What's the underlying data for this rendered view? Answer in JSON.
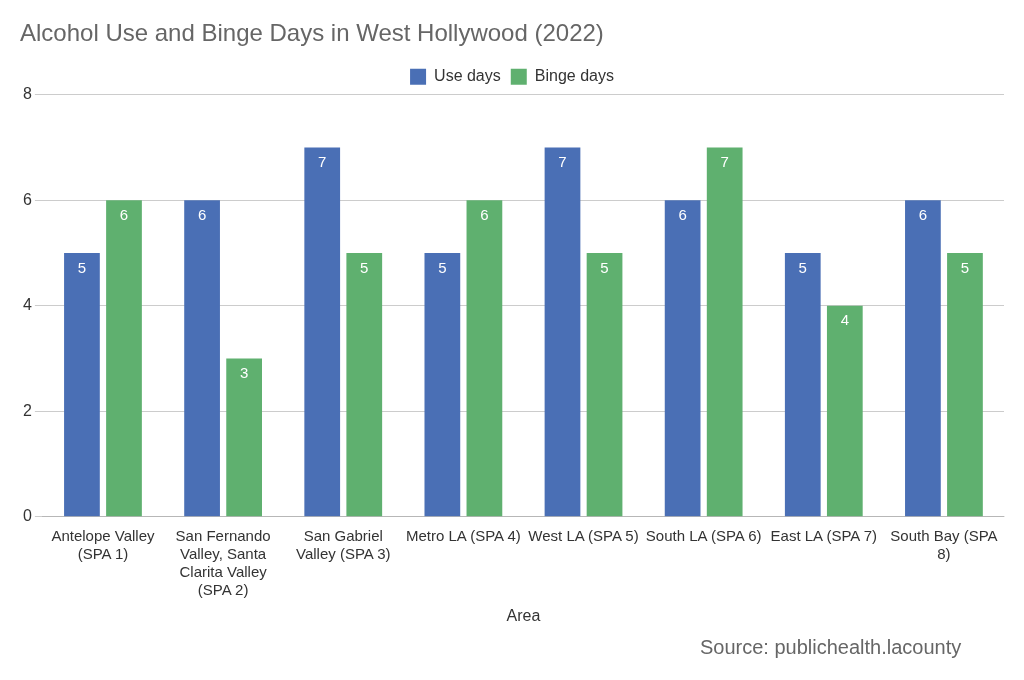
{
  "chart_data": {
    "type": "bar",
    "title": "Alcohol Use and Binge Days in West Hollywood (2022)",
    "xlabel": "Area",
    "categories": [
      "Antelope Valley (SPA 1)",
      "San Fernando Valley, Santa Clarita Valley (SPA 2)",
      "San Gabriel Valley (SPA 3)",
      "Metro LA (SPA 4)",
      "West LA (SPA 5)",
      "South LA (SPA 6)",
      "East LA (SPA 7)",
      "South Bay (SPA 8)"
    ],
    "series": [
      {
        "name": "Use days",
        "color": "#4a6fb5",
        "values": [
          5,
          6,
          7,
          5,
          7,
          6,
          5,
          6
        ]
      },
      {
        "name": "Binge days",
        "color": "#5fb06f",
        "values": [
          6,
          3,
          5,
          6,
          5,
          7,
          4,
          5
        ]
      }
    ],
    "ylim": [
      0,
      8
    ],
    "yticks": [
      0,
      2,
      4,
      6,
      8
    ],
    "grid": "y",
    "legend": "top",
    "data_labels": true,
    "annotations": [
      "Source: publichealth.lacounty"
    ]
  }
}
